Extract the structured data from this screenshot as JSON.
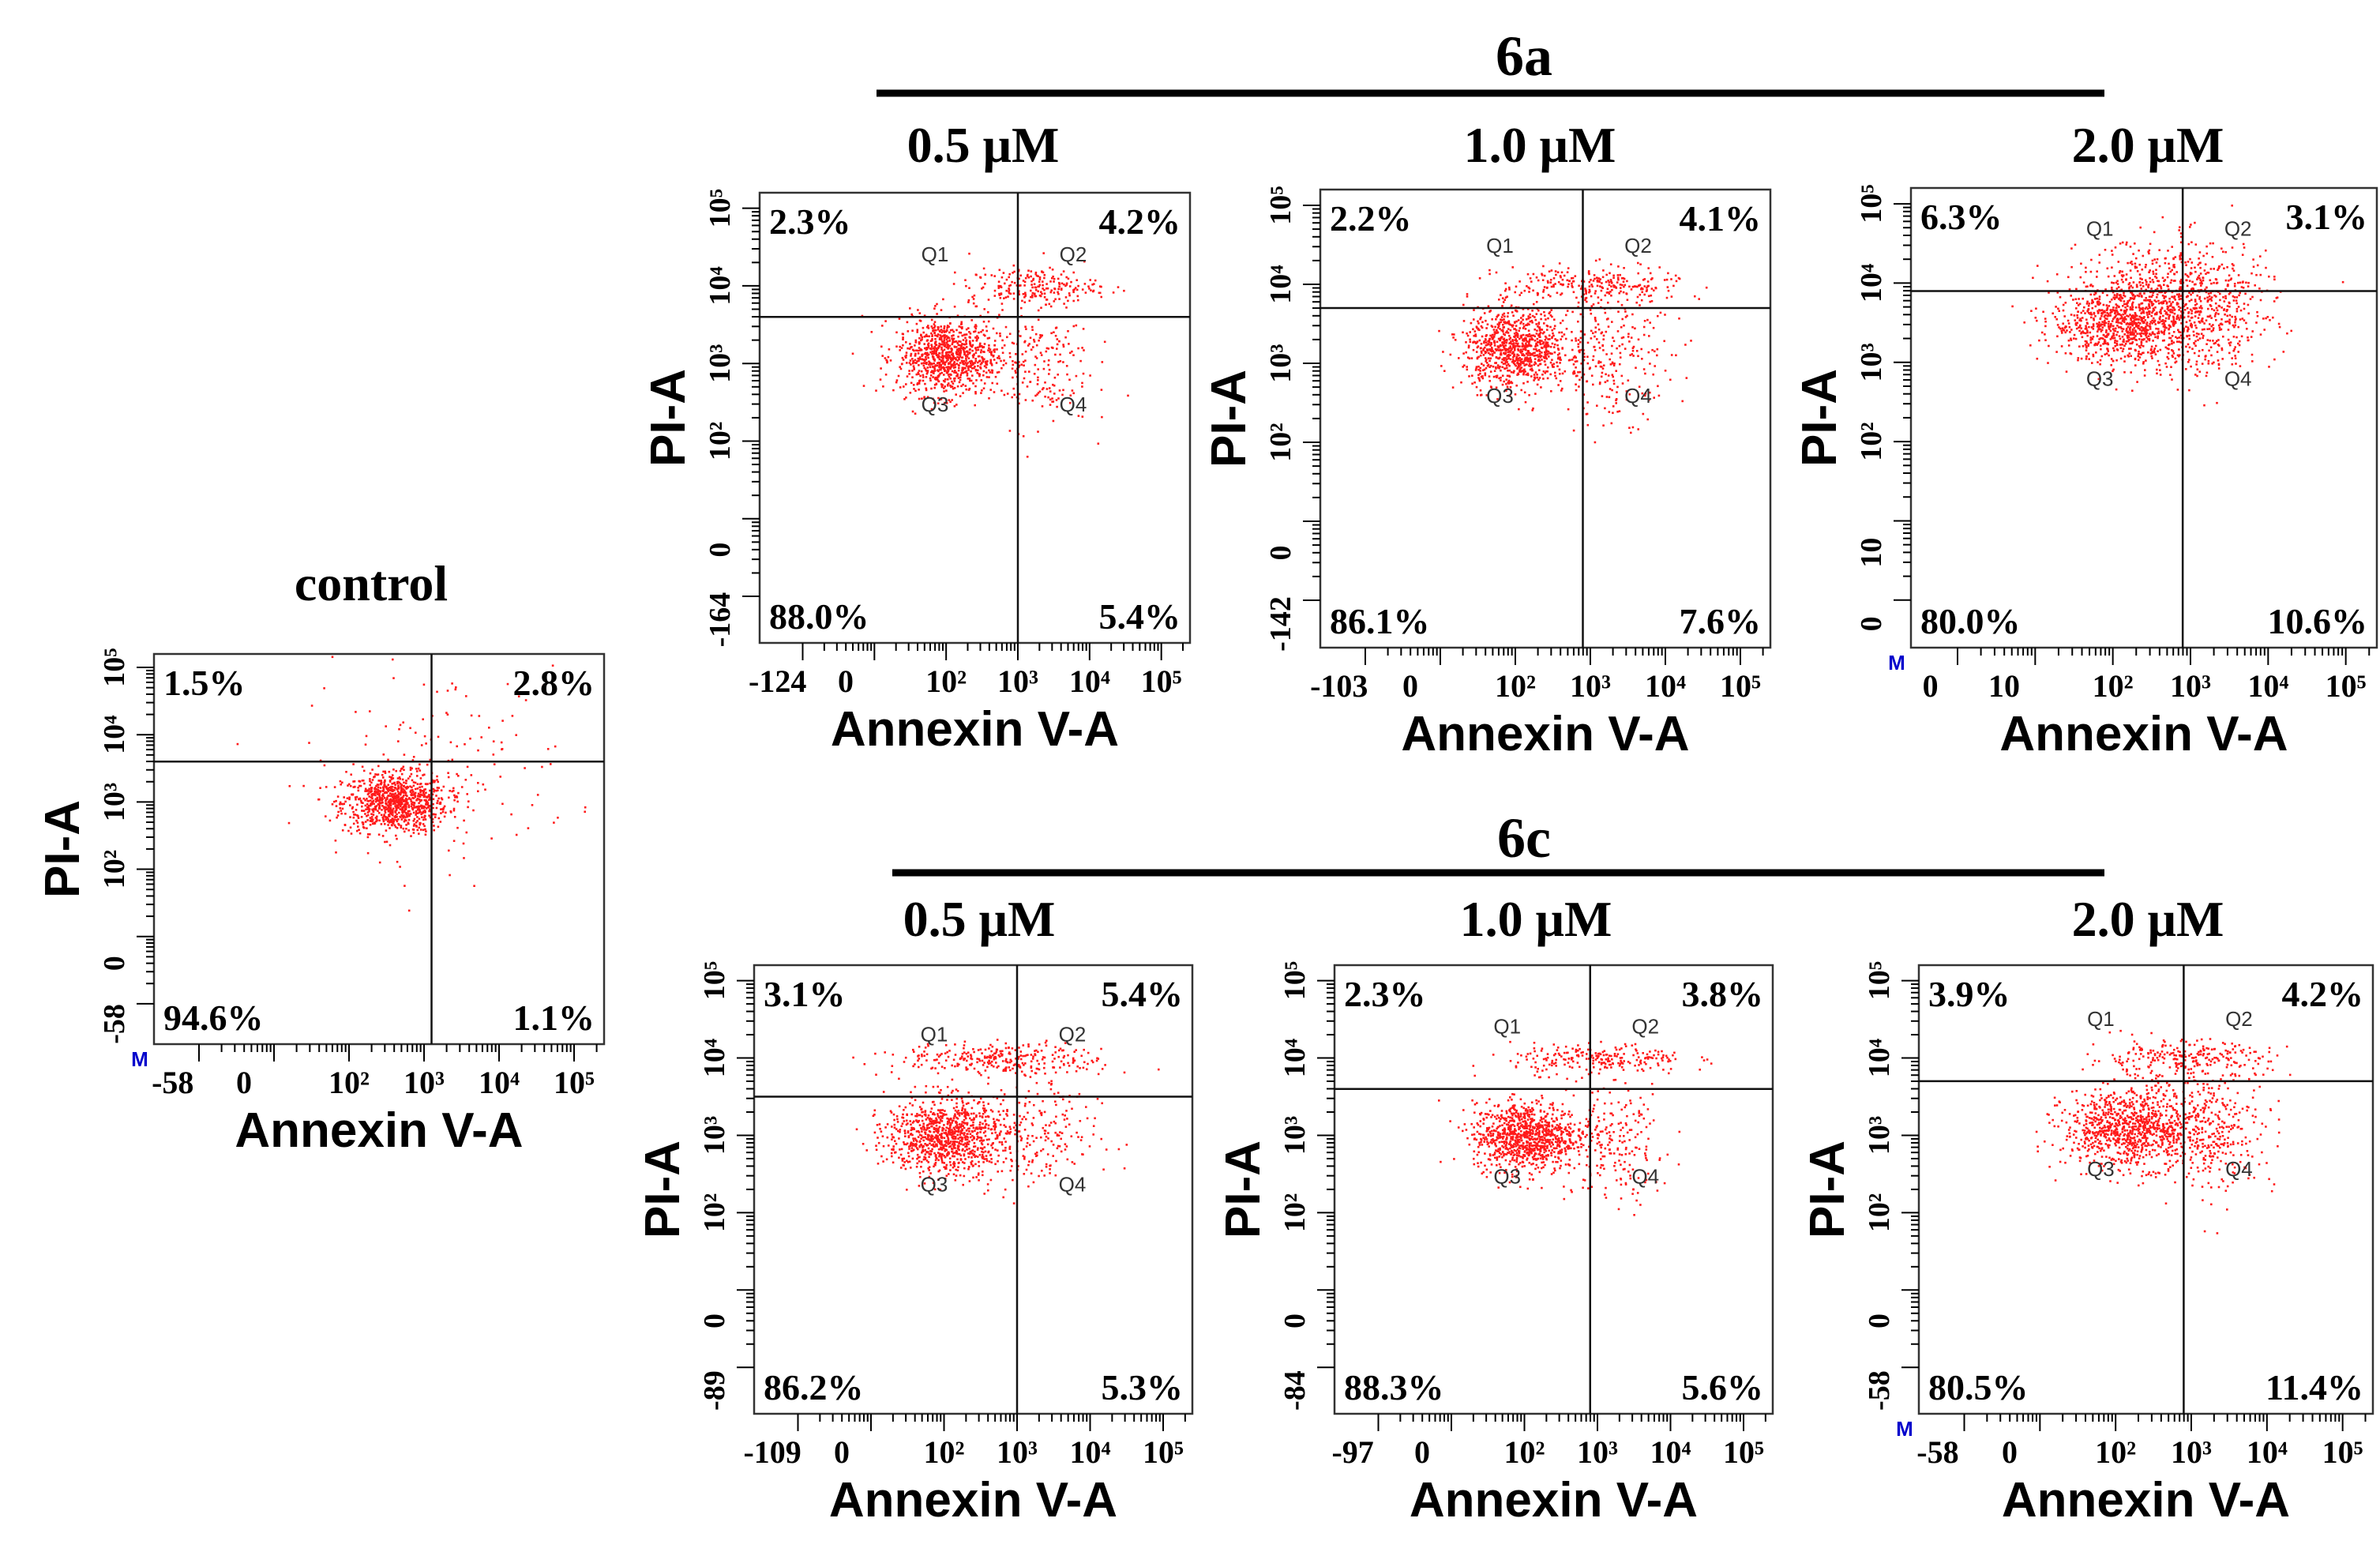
{
  "figure": {
    "x_axis_label": "Annexin V-A",
    "y_axis_label": "PI-A",
    "quadrant_labels": [
      "Q1",
      "Q2",
      "Q3",
      "Q4"
    ],
    "marker_label": "M",
    "colors": {
      "dots": "#ff1a1a",
      "axis": "#000000",
      "marker": "#0000cc"
    }
  },
  "groups": [
    {
      "id": "6a",
      "label": "6a"
    },
    {
      "id": "6c",
      "label": "6c"
    }
  ],
  "chart_data": [
    {
      "type": "scatter",
      "title": "control",
      "xlabel": "Annexin V-A",
      "ylabel": "PI-A",
      "xticks": [
        "-58",
        "0",
        "10²",
        "10³",
        "10⁴",
        "10⁵"
      ],
      "yticks": [
        "-58",
        "0",
        "10²",
        "10³",
        "10⁴",
        "10⁵"
      ],
      "quadrants": {
        "Q1": "1.5%",
        "Q2": "2.8%",
        "Q3": "94.6%",
        "Q4": "1.1%"
      },
      "marker": true,
      "show_q_labels": false,
      "gate": {
        "x": 3.1,
        "y": 3.6
      },
      "clusters": [
        {
          "x": 2.6,
          "y": 3.0,
          "sx": 0.35,
          "sy": 0.22,
          "n": 900
        },
        {
          "x": 3.2,
          "y": 3.6,
          "sx": 0.9,
          "sy": 0.7,
          "n": 140
        }
      ]
    },
    {
      "type": "scatter",
      "title": "0.5 μM",
      "group": "6a",
      "xlabel": "Annexin V-A",
      "ylabel": "PI-A",
      "xticks": [
        "-124",
        "0",
        "10²",
        "10³",
        "10⁴",
        "10⁵"
      ],
      "yticks": [
        "-164",
        "0",
        "10²",
        "10³",
        "10⁴",
        "10⁵"
      ],
      "quadrants": {
        "Q1": "2.3%",
        "Q2": "4.2%",
        "Q3": "88.0%",
        "Q4": "5.4%"
      },
      "marker": false,
      "show_q_labels": true,
      "gate": {
        "x": 3.0,
        "y": 3.6
      },
      "clusters": [
        {
          "x": 2.0,
          "y": 3.1,
          "sx": 0.35,
          "sy": 0.25,
          "n": 900
        },
        {
          "x": 3.2,
          "y": 4.0,
          "sx": 0.45,
          "sy": 0.12,
          "n": 220
        },
        {
          "x": 3.2,
          "y": 3.0,
          "sx": 0.4,
          "sy": 0.4,
          "n": 200
        }
      ]
    },
    {
      "type": "scatter",
      "title": "1.0 μM",
      "group": "6a",
      "xlabel": "Annexin V-A",
      "ylabel": "PI-A",
      "xticks": [
        "-103",
        "0",
        "10²",
        "10³",
        "10⁴",
        "10⁵"
      ],
      "yticks": [
        "-142",
        "0",
        "10²",
        "10³",
        "10⁴",
        "10⁵"
      ],
      "quadrants": {
        "Q1": "2.2%",
        "Q2": "4.1%",
        "Q3": "86.1%",
        "Q4": "7.6%"
      },
      "marker": false,
      "show_q_labels": true,
      "gate": {
        "x": 2.9,
        "y": 3.7
      },
      "clusters": [
        {
          "x": 2.0,
          "y": 3.2,
          "sx": 0.35,
          "sy": 0.25,
          "n": 900
        },
        {
          "x": 3.0,
          "y": 4.0,
          "sx": 0.6,
          "sy": 0.12,
          "n": 250
        },
        {
          "x": 3.3,
          "y": 3.1,
          "sx": 0.4,
          "sy": 0.4,
          "n": 250
        }
      ]
    },
    {
      "type": "scatter",
      "title": "2.0 μM",
      "group": "6a",
      "xlabel": "Annexin V-A",
      "ylabel": "PI-A",
      "xticks": [
        "0",
        "10",
        "10²",
        "10³",
        "10⁴",
        "10⁵"
      ],
      "yticks": [
        "0",
        "10",
        "10²",
        "10³",
        "10⁴",
        "10⁵"
      ],
      "quadrants": {
        "Q1": "6.3%",
        "Q2": "3.1%",
        "Q3": "80.0%",
        "Q4": "10.6%"
      },
      "marker": true,
      "show_q_labels": true,
      "gate": {
        "x": 2.9,
        "y": 3.9
      },
      "clusters": [
        {
          "x": 2.2,
          "y": 3.5,
          "sx": 0.5,
          "sy": 0.25,
          "n": 1000
        },
        {
          "x": 2.8,
          "y": 4.0,
          "sx": 0.6,
          "sy": 0.3,
          "n": 400
        },
        {
          "x": 3.3,
          "y": 3.5,
          "sx": 0.4,
          "sy": 0.35,
          "n": 250
        }
      ]
    },
    {
      "type": "scatter",
      "title": "0.5 μM",
      "group": "6c",
      "xlabel": "Annexin V-A",
      "ylabel": "PI-A",
      "xticks": [
        "-109",
        "0",
        "10²",
        "10³",
        "10⁴",
        "10⁵"
      ],
      "yticks": [
        "-89",
        "0",
        "10²",
        "10³",
        "10⁴",
        "10⁵"
      ],
      "quadrants": {
        "Q1": "3.1%",
        "Q2": "5.4%",
        "Q3": "86.2%",
        "Q4": "5.3%"
      },
      "marker": false,
      "show_q_labels": true,
      "gate": {
        "x": 3.0,
        "y": 3.5
      },
      "clusters": [
        {
          "x": 2.0,
          "y": 3.0,
          "sx": 0.4,
          "sy": 0.25,
          "n": 950
        },
        {
          "x": 2.8,
          "y": 4.0,
          "sx": 0.7,
          "sy": 0.1,
          "n": 280
        },
        {
          "x": 3.2,
          "y": 3.0,
          "sx": 0.45,
          "sy": 0.4,
          "n": 220
        }
      ]
    },
    {
      "type": "scatter",
      "title": "1.0 μM",
      "group": "6c",
      "xlabel": "Annexin V-A",
      "ylabel": "PI-A",
      "xticks": [
        "-97",
        "0",
        "10²",
        "10³",
        "10⁴",
        "10⁵"
      ],
      "yticks": [
        "-84",
        "0",
        "10²",
        "10³",
        "10⁴",
        "10⁵"
      ],
      "quadrants": {
        "Q1": "2.3%",
        "Q2": "3.8%",
        "Q3": "88.3%",
        "Q4": "5.6%"
      },
      "marker": false,
      "show_q_labels": true,
      "gate": {
        "x": 2.9,
        "y": 3.6
      },
      "clusters": [
        {
          "x": 2.0,
          "y": 3.0,
          "sx": 0.35,
          "sy": 0.22,
          "n": 950
        },
        {
          "x": 3.0,
          "y": 4.0,
          "sx": 0.6,
          "sy": 0.1,
          "n": 220
        },
        {
          "x": 3.2,
          "y": 2.9,
          "sx": 0.4,
          "sy": 0.4,
          "n": 220
        }
      ]
    },
    {
      "type": "scatter",
      "title": "2.0 μM",
      "group": "6c",
      "xlabel": "Annexin V-A",
      "ylabel": "PI-A",
      "xticks": [
        "-58",
        "0",
        "10²",
        "10³",
        "10⁴",
        "10⁵"
      ],
      "yticks": [
        "-58",
        "0",
        "10²",
        "10³",
        "10⁴",
        "10⁵"
      ],
      "quadrants": {
        "Q1": "3.9%",
        "Q2": "4.2%",
        "Q3": "80.5%",
        "Q4": "11.4%"
      },
      "marker": true,
      "show_q_labels": true,
      "gate": {
        "x": 2.9,
        "y": 3.7
      },
      "clusters": [
        {
          "x": 2.2,
          "y": 3.1,
          "sx": 0.45,
          "sy": 0.25,
          "n": 950
        },
        {
          "x": 2.8,
          "y": 4.0,
          "sx": 0.6,
          "sy": 0.12,
          "n": 250
        },
        {
          "x": 3.3,
          "y": 3.1,
          "sx": 0.4,
          "sy": 0.4,
          "n": 300
        }
      ]
    }
  ]
}
